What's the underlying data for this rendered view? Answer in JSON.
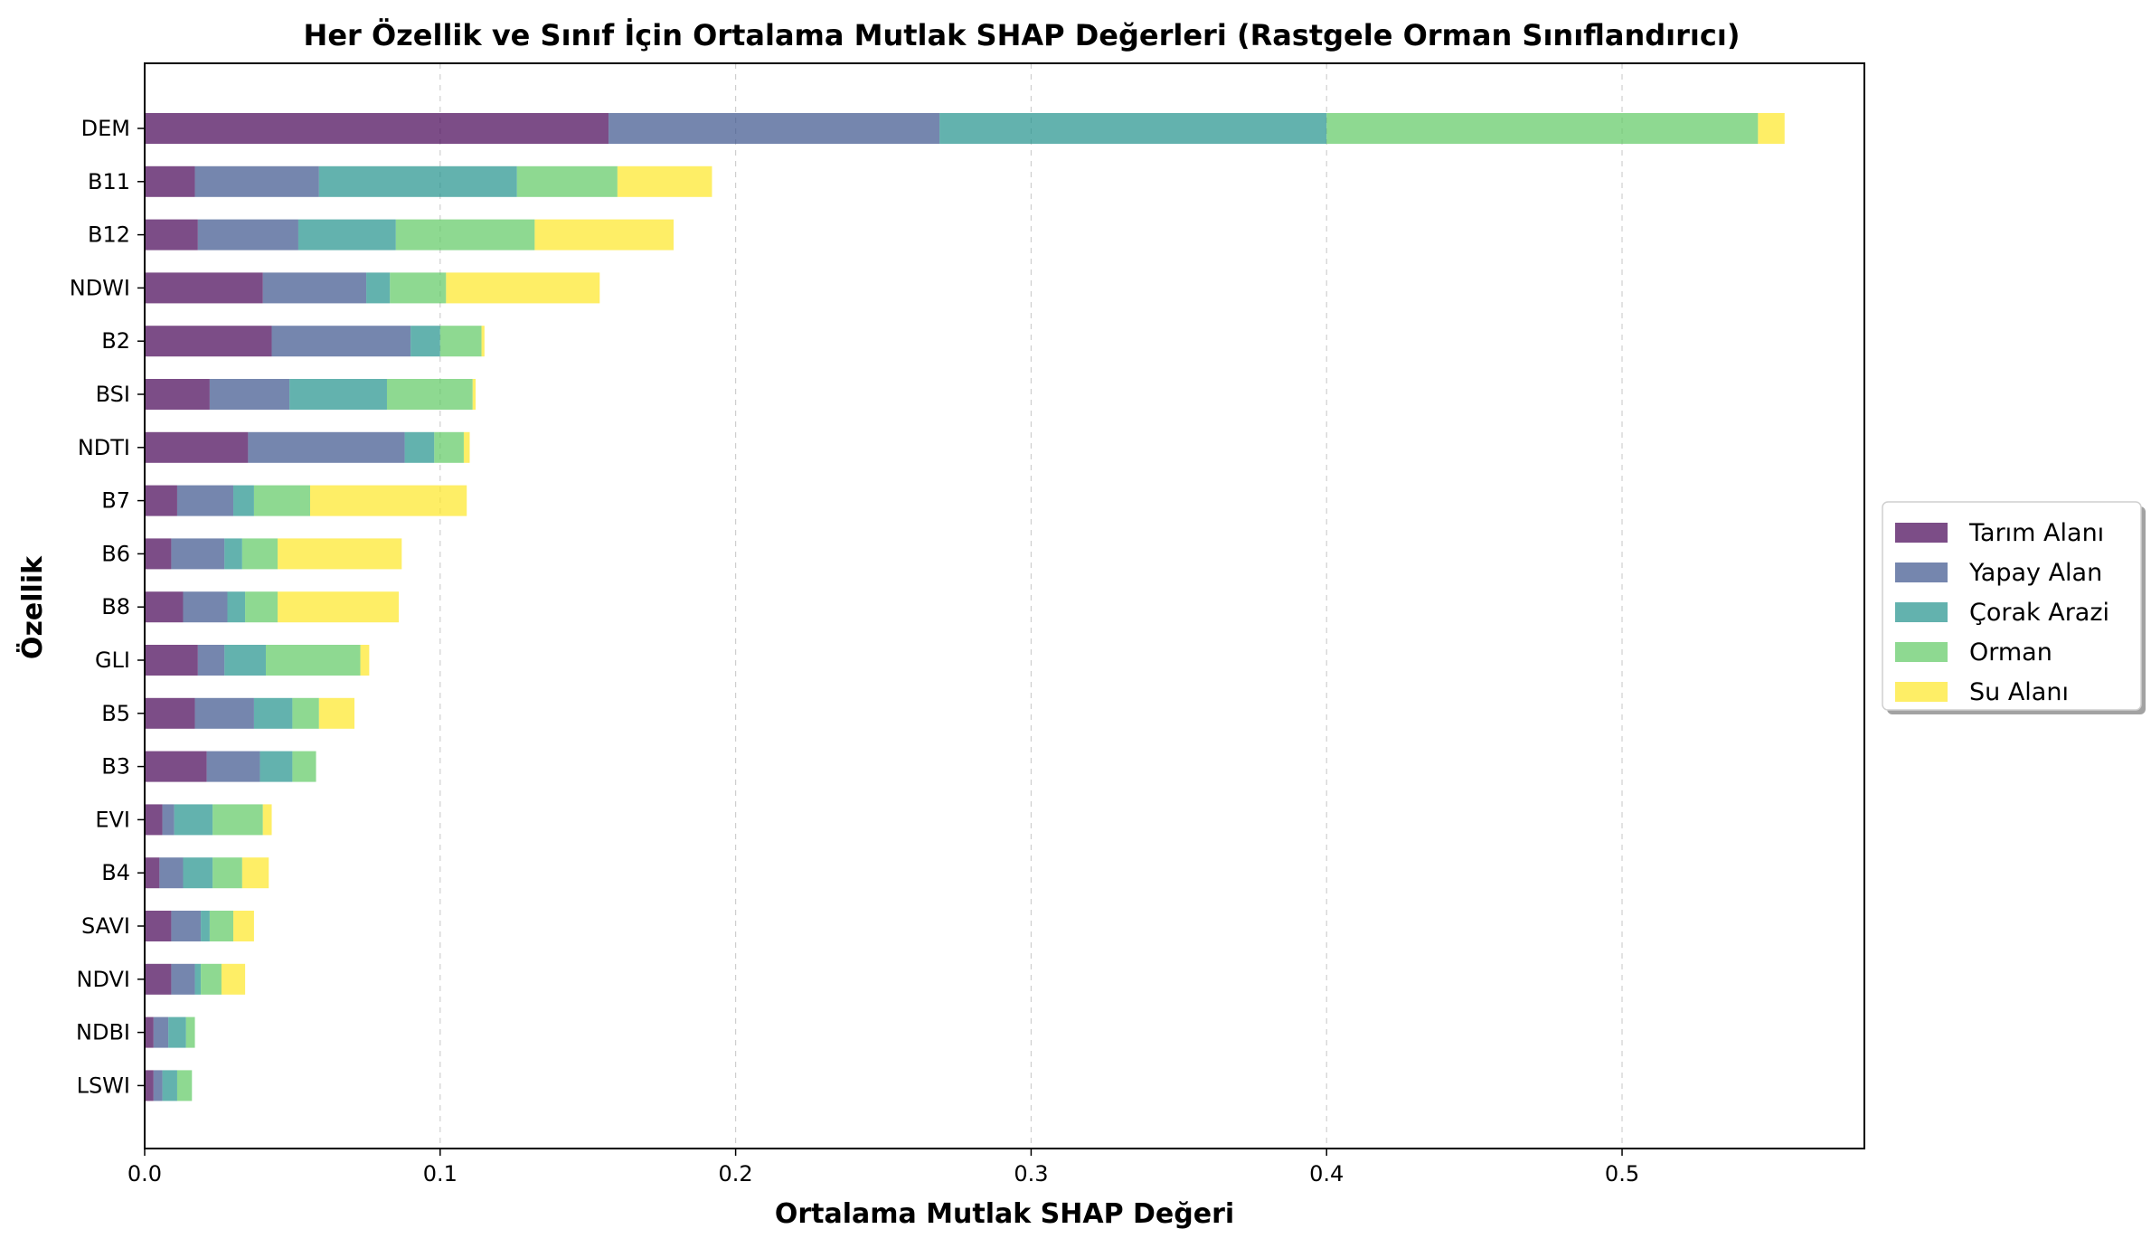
{
  "chart_data": {
    "type": "bar",
    "orientation": "horizontal",
    "stacked": true,
    "title": "Her Özellik ve Sınıf İçin Ortalama Mutlak SHAP Değerleri (Rastgele Orman Sınıflandırıcı)",
    "xlabel": "Ortalama Mutlak SHAP Değeri",
    "ylabel": "Özellik",
    "xlim": [
      0,
      0.582
    ],
    "xticks": [
      0.0,
      0.1,
      0.2,
      0.3,
      0.4,
      0.5
    ],
    "xtick_labels": [
      "0.0",
      "0.1",
      "0.2",
      "0.3",
      "0.4",
      "0.5"
    ],
    "grid": "vertical dashed",
    "legend_position": "center-right, outside plot",
    "categories": [
      "DEM",
      "B11",
      "B12",
      "NDWI",
      "B2",
      "BSI",
      "NDTI",
      "B7",
      "B6",
      "B8",
      "GLI",
      "B5",
      "B3",
      "EVI",
      "B4",
      "SAVI",
      "NDVI",
      "NDBI",
      "LSWI"
    ],
    "series": [
      {
        "name": "Tarım Alanı",
        "color": "#440154",
        "values": [
          0.157,
          0.017,
          0.018,
          0.04,
          0.043,
          0.022,
          0.035,
          0.011,
          0.009,
          0.013,
          0.018,
          0.017,
          0.021,
          0.006,
          0.005,
          0.009,
          0.009,
          0.003,
          0.003
        ]
      },
      {
        "name": "Yapay Alan",
        "color": "#3b528b",
        "values": [
          0.112,
          0.042,
          0.034,
          0.035,
          0.047,
          0.027,
          0.053,
          0.019,
          0.018,
          0.015,
          0.009,
          0.02,
          0.018,
          0.004,
          0.008,
          0.01,
          0.008,
          0.005,
          0.003
        ]
      },
      {
        "name": "Çorak Arazi",
        "color": "#21918c",
        "values": [
          0.131,
          0.067,
          0.033,
          0.008,
          0.01,
          0.033,
          0.01,
          0.007,
          0.006,
          0.006,
          0.014,
          0.013,
          0.011,
          0.013,
          0.01,
          0.003,
          0.002,
          0.006,
          0.005
        ]
      },
      {
        "name": "Orman",
        "color": "#5ec962",
        "values": [
          0.146,
          0.034,
          0.047,
          0.019,
          0.014,
          0.029,
          0.01,
          0.019,
          0.012,
          0.011,
          0.032,
          0.009,
          0.008,
          0.017,
          0.01,
          0.008,
          0.007,
          0.003,
          0.005
        ]
      },
      {
        "name": "Su Alanı",
        "color": "#fde725",
        "values": [
          0.009,
          0.032,
          0.047,
          0.052,
          0.001,
          0.001,
          0.002,
          0.053,
          0.042,
          0.041,
          0.003,
          0.012,
          0.0,
          0.003,
          0.009,
          0.007,
          0.008,
          0.0,
          0.0
        ]
      }
    ]
  }
}
